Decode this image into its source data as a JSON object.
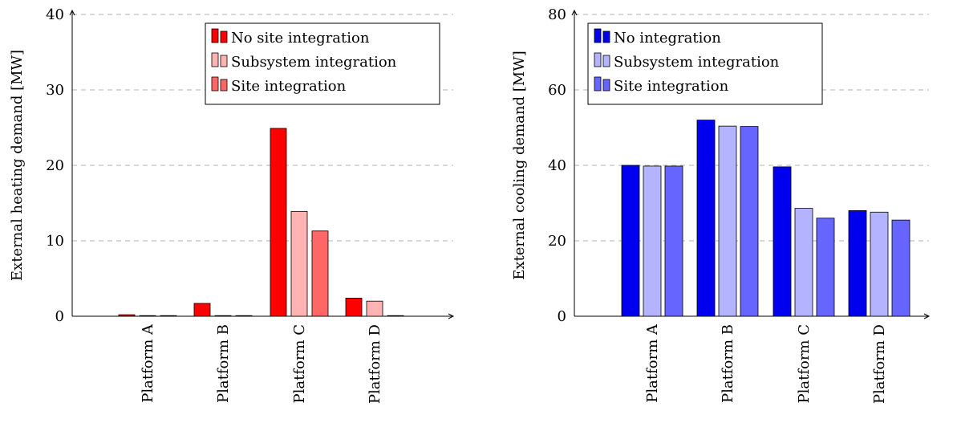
{
  "chart_data": [
    {
      "type": "bar",
      "categories": [
        "Platform A",
        "Platform B",
        "Platform C",
        "Platform D"
      ],
      "series": [
        {
          "name": "No site integration",
          "values": [
            0.2,
            1.7,
            24.9,
            2.4
          ],
          "color": "#ff0000"
        },
        {
          "name": "Subsystem integration",
          "values": [
            0,
            0,
            13.9,
            2.0
          ],
          "color": "#ffb3b3"
        },
        {
          "name": "Site integration",
          "values": [
            0,
            0,
            11.3,
            0
          ],
          "color": "#ff6666"
        }
      ],
      "xlabel": "",
      "ylabel": "External heating demand [MW]",
      "ylim": [
        0,
        40
      ],
      "yticks": [
        "0",
        "10",
        "20",
        "30",
        "40"
      ],
      "grid": "horizontal dashed",
      "legend_position": "top-right"
    },
    {
      "type": "bar",
      "categories": [
        "Platform A",
        "Platform B",
        "Platform C",
        "Platform D"
      ],
      "series": [
        {
          "name": "No integration",
          "values": [
            40.0,
            52.0,
            39.6,
            28.0
          ],
          "color": "#0000ee"
        },
        {
          "name": "Subsystem integration",
          "values": [
            39.8,
            50.4,
            28.6,
            27.6
          ],
          "color": "#b3b3ff"
        },
        {
          "name": "Site integration",
          "values": [
            39.8,
            50.3,
            26.0,
            25.5
          ],
          "color": "#6666ff"
        }
      ],
      "xlabel": "",
      "ylabel": "External cooling demand [MW]",
      "ylim": [
        0,
        80
      ],
      "yticks": [
        "0",
        "20",
        "40",
        "60",
        "80"
      ],
      "grid": "horizontal dashed",
      "legend_position": "top-right"
    }
  ]
}
